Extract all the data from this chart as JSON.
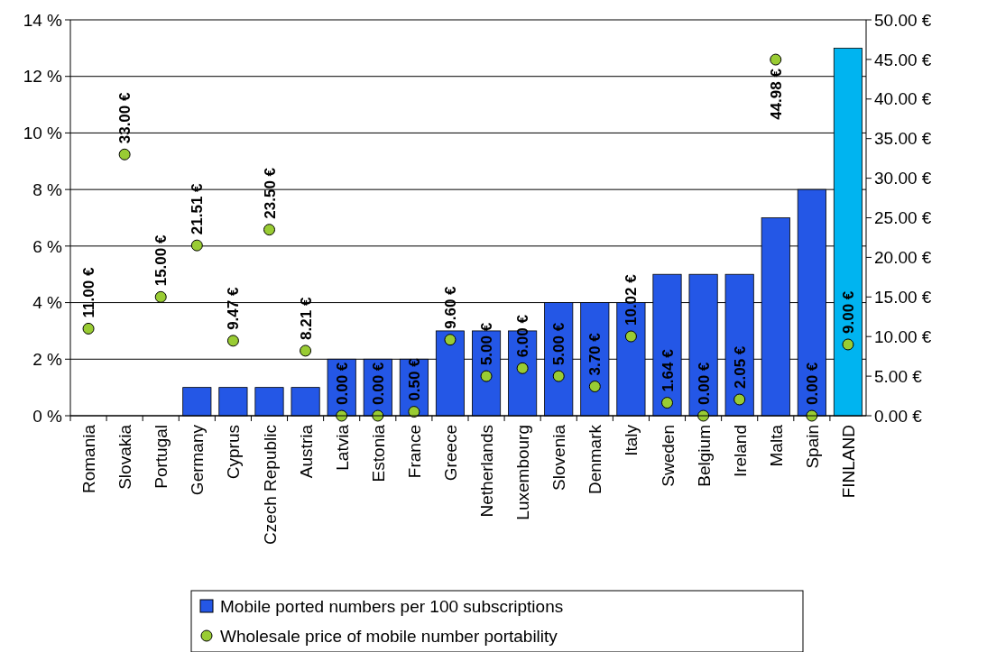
{
  "chart_data": {
    "type": "bar",
    "categories": [
      "Romania",
      "Slovakia",
      "Portugal",
      "Germany",
      "Cyprus",
      "Czech Republic",
      "Austria",
      "Latvia",
      "Estonia",
      "France",
      "Greece",
      "Netherlands",
      "Luxembourg",
      "Slovenia",
      "Denmark",
      "Italy",
      "Sweden",
      "Belgium",
      "Ireland",
      "Malta",
      "Spain",
      "FINLAND"
    ],
    "series": [
      {
        "name": "Mobile ported numbers per 100 subscriptions",
        "color": "#2457e6",
        "colors": [
          "#2457e6",
          "#2457e6",
          "#2457e6",
          "#2457e6",
          "#2457e6",
          "#2457e6",
          "#2457e6",
          "#2457e6",
          "#2457e6",
          "#2457e6",
          "#2457e6",
          "#2457e6",
          "#2457e6",
          "#2457e6",
          "#2457e6",
          "#2457e6",
          "#2457e6",
          "#2457e6",
          "#2457e6",
          "#2457e6",
          "#2457e6",
          "#00b4f0"
        ],
        "values": [
          0,
          0,
          0,
          1,
          1,
          1,
          1,
          2,
          2,
          2,
          3,
          3,
          3,
          4,
          4,
          4,
          5,
          5,
          5,
          7,
          8,
          13
        ]
      },
      {
        "name": "Wholesale price of mobile number portability",
        "type": "scatter",
        "axis": "y2",
        "color": "#99cc33",
        "values": [
          11,
          33,
          15,
          21.51,
          9.47,
          23.5,
          8.21,
          0,
          0,
          0.5,
          9.6,
          5,
          6,
          5,
          3.7,
          10.02,
          1.64,
          0,
          2.05,
          44.98,
          0,
          9
        ],
        "value_labels": [
          "11.00 €",
          "33.00 €",
          "15.00 €",
          "21.51 €",
          "9.47 €",
          "23.50 €",
          "8.21 €",
          "0.00 €",
          "0.00 €",
          "0.50 €",
          "9.60 €",
          "5.00 €",
          "6.00 €",
          "5.00 €",
          "3.70 €",
          "10.02 €",
          "1.64 €",
          "0.00 €",
          "2.05 €",
          "44.98 €",
          "0.00 €",
          "9.00 €"
        ]
      }
    ],
    "ylim": [
      0,
      14
    ],
    "yticks": [
      {
        "value": 0,
        "label": "0 %"
      },
      {
        "value": 2,
        "label": "2 %"
      },
      {
        "value": 4,
        "label": "4 %"
      },
      {
        "value": 6,
        "label": "6 %"
      },
      {
        "value": 8,
        "label": "8 %"
      },
      {
        "value": 10,
        "label": "10 %"
      },
      {
        "value": 12,
        "label": "12 %"
      },
      {
        "value": 14,
        "label": "14 %"
      }
    ],
    "y2lim": [
      0,
      50
    ],
    "y2ticks": [
      {
        "value": 0,
        "label": "0.00 €"
      },
      {
        "value": 5,
        "label": "5.00 €"
      },
      {
        "value": 10,
        "label": "10.00 €"
      },
      {
        "value": 15,
        "label": "15.00 €"
      },
      {
        "value": 20,
        "label": "20.00 €"
      },
      {
        "value": 25,
        "label": "25.00 €"
      },
      {
        "value": 30,
        "label": "30.00 €"
      },
      {
        "value": 35,
        "label": "35.00 €"
      },
      {
        "value": 40,
        "label": "40.00 €"
      },
      {
        "value": 45,
        "label": "45.00 €"
      },
      {
        "value": 50,
        "label": "50.00 €"
      }
    ],
    "grid": "y",
    "legend": "bottom",
    "marker": "circle"
  }
}
